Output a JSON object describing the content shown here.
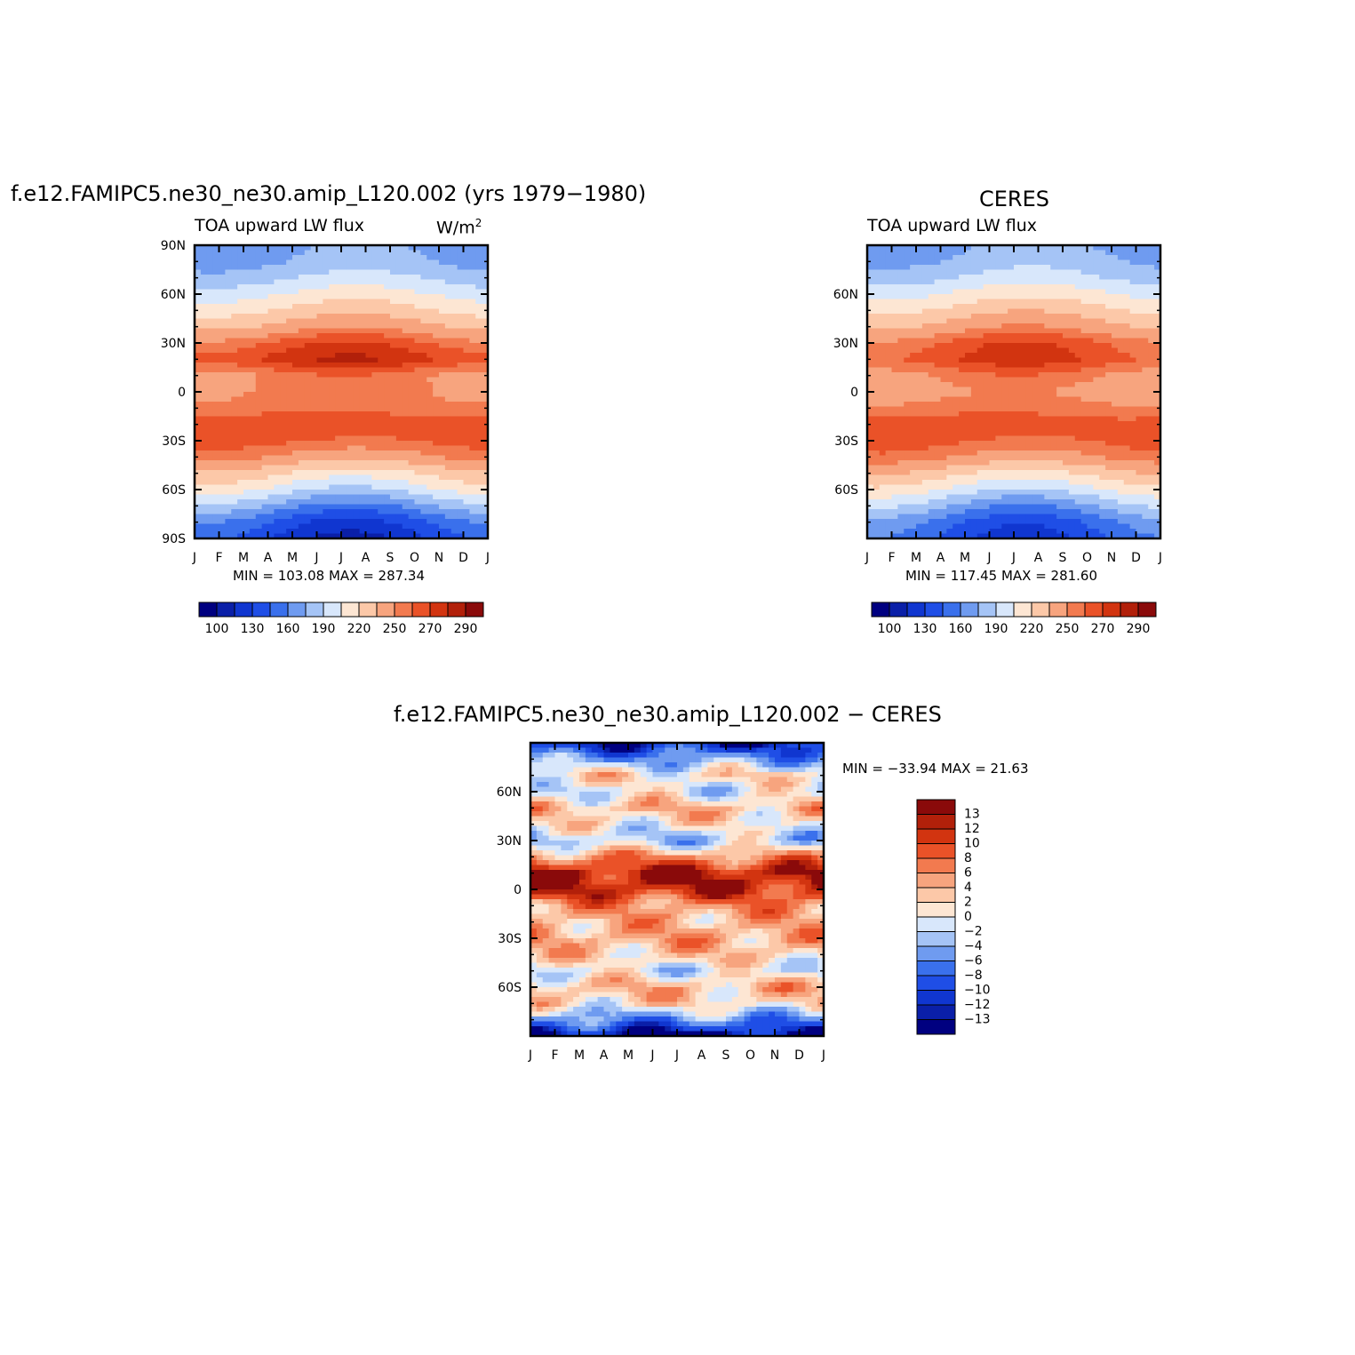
{
  "panels": [
    {
      "title": "f.e12.FAMIPC5.ne30_ne30.amip_L120.002 (yrs 1979−1980)",
      "subtitle": "TOA upward LW flux",
      "units": "W/m",
      "units_sup": "2",
      "minmax": "MIN = 103.08 MAX = 287.34"
    },
    {
      "title": "CERES",
      "subtitle": "TOA upward LW flux",
      "minmax": "MIN = 117.45 MAX = 281.60"
    },
    {
      "title": "f.e12.FAMIPC5.ne30_ne30.amip_L120.002 − CERES",
      "minmax": "MIN = −33.94 MAX =  21.63"
    }
  ],
  "chart_data": [
    {
      "type": "heatmap",
      "name": "model",
      "title": "f.e12.FAMIPC5.ne30_ne30.amip_L120.002 (yrs 1979−1980)",
      "subtitle": "TOA upward LW flux",
      "units": "W/m2",
      "x_ticks": [
        "J",
        "F",
        "M",
        "A",
        "M",
        "J",
        "J",
        "A",
        "S",
        "O",
        "N",
        "D",
        "J"
      ],
      "y_ticks": [
        "90N",
        "60N",
        "30N",
        "0",
        "30S",
        "60S",
        "90S"
      ],
      "y_range": [
        -90,
        90
      ],
      "min": 103.08,
      "max": 287.34,
      "colorbar_labels": [
        "100",
        "130",
        "160",
        "190",
        "220",
        "250",
        "270",
        "290"
      ],
      "colorbar_colors": [
        "#000080",
        "#0a1fa8",
        "#1036d0",
        "#1f4ee6",
        "#3a70ec",
        "#6f9bf0",
        "#a5c4f6",
        "#d8e7fb",
        "#fde6d3",
        "#fcc8a8",
        "#f7a47e",
        "#f27a4f",
        "#ea5228",
        "#d23410",
        "#b2200a",
        "#8a0a0a"
      ],
      "profile_lat": [
        -90,
        -80,
        -70,
        -60,
        -50,
        -40,
        -30,
        -20,
        -10,
        0,
        10,
        20,
        30,
        40,
        50,
        60,
        70,
        80,
        90
      ],
      "profile_values": [
        128,
        142,
        170,
        200,
        222,
        248,
        262,
        268,
        255,
        252,
        252,
        274,
        262,
        240,
        222,
        205,
        188,
        175,
        170
      ]
    },
    {
      "type": "heatmap",
      "name": "CERES",
      "title": "CERES",
      "subtitle": "TOA upward LW flux",
      "x_ticks": [
        "J",
        "F",
        "M",
        "A",
        "M",
        "J",
        "J",
        "A",
        "S",
        "O",
        "N",
        "D",
        "J"
      ],
      "y_ticks": [
        "60N",
        "30N",
        "0",
        "30S",
        "60S"
      ],
      "y_range": [
        -90,
        90
      ],
      "min": 117.45,
      "max": 281.6,
      "colorbar_labels": [
        "100",
        "130",
        "160",
        "190",
        "220",
        "250",
        "270",
        "290"
      ],
      "colorbar_colors": [
        "#000080",
        "#0a1fa8",
        "#1036d0",
        "#1f4ee6",
        "#3a70ec",
        "#6f9bf0",
        "#a5c4f6",
        "#d8e7fb",
        "#fde6d3",
        "#fcc8a8",
        "#f7a47e",
        "#f27a4f",
        "#ea5228",
        "#d23410",
        "#b2200a",
        "#8a0a0a"
      ],
      "profile_lat": [
        -90,
        -80,
        -70,
        -60,
        -50,
        -40,
        -30,
        -20,
        -10,
        0,
        10,
        20,
        30,
        40,
        50,
        60,
        70,
        80,
        90
      ],
      "profile_values": [
        140,
        150,
        175,
        202,
        225,
        250,
        262,
        265,
        255,
        245,
        252,
        268,
        262,
        242,
        225,
        208,
        190,
        178,
        172
      ]
    },
    {
      "type": "heatmap",
      "name": "difference",
      "title": "f.e12.FAMIPC5.ne30_ne30.amip_L120.002 − CERES",
      "x_ticks": [
        "J",
        "F",
        "M",
        "A",
        "M",
        "J",
        "J",
        "A",
        "S",
        "O",
        "N",
        "D",
        "J"
      ],
      "y_ticks": [
        "60N",
        "30N",
        "0",
        "30S",
        "60S"
      ],
      "y_range": [
        -90,
        90
      ],
      "min": -33.94,
      "max": 21.63,
      "colorbar_labels": [
        "13",
        "12",
        "10",
        "8",
        "6",
        "4",
        "2",
        "0",
        "−2",
        "−4",
        "−6",
        "−8",
        "−10",
        "−12",
        "−13"
      ],
      "colorbar_colors": [
        "#8a0a0a",
        "#b2200a",
        "#d23410",
        "#ea5228",
        "#f27a4f",
        "#f7a47e",
        "#fcc8a8",
        "#fde6d3",
        "#d8e7fb",
        "#a5c4f6",
        "#6f9bf0",
        "#3a70ec",
        "#1f4ee6",
        "#1036d0",
        "#0a1fa8",
        "#000080"
      ],
      "profile_lat": [
        -90,
        -80,
        -70,
        -60,
        -50,
        -40,
        -30,
        -20,
        -10,
        0,
        10,
        20,
        30,
        40,
        50,
        60,
        70,
        80,
        90
      ],
      "profile_values": [
        -14,
        -6,
        2,
        4,
        -1,
        3,
        5,
        4,
        6,
        12,
        13,
        6,
        -3,
        1,
        4,
        -1,
        2,
        -5,
        -12
      ]
    }
  ]
}
